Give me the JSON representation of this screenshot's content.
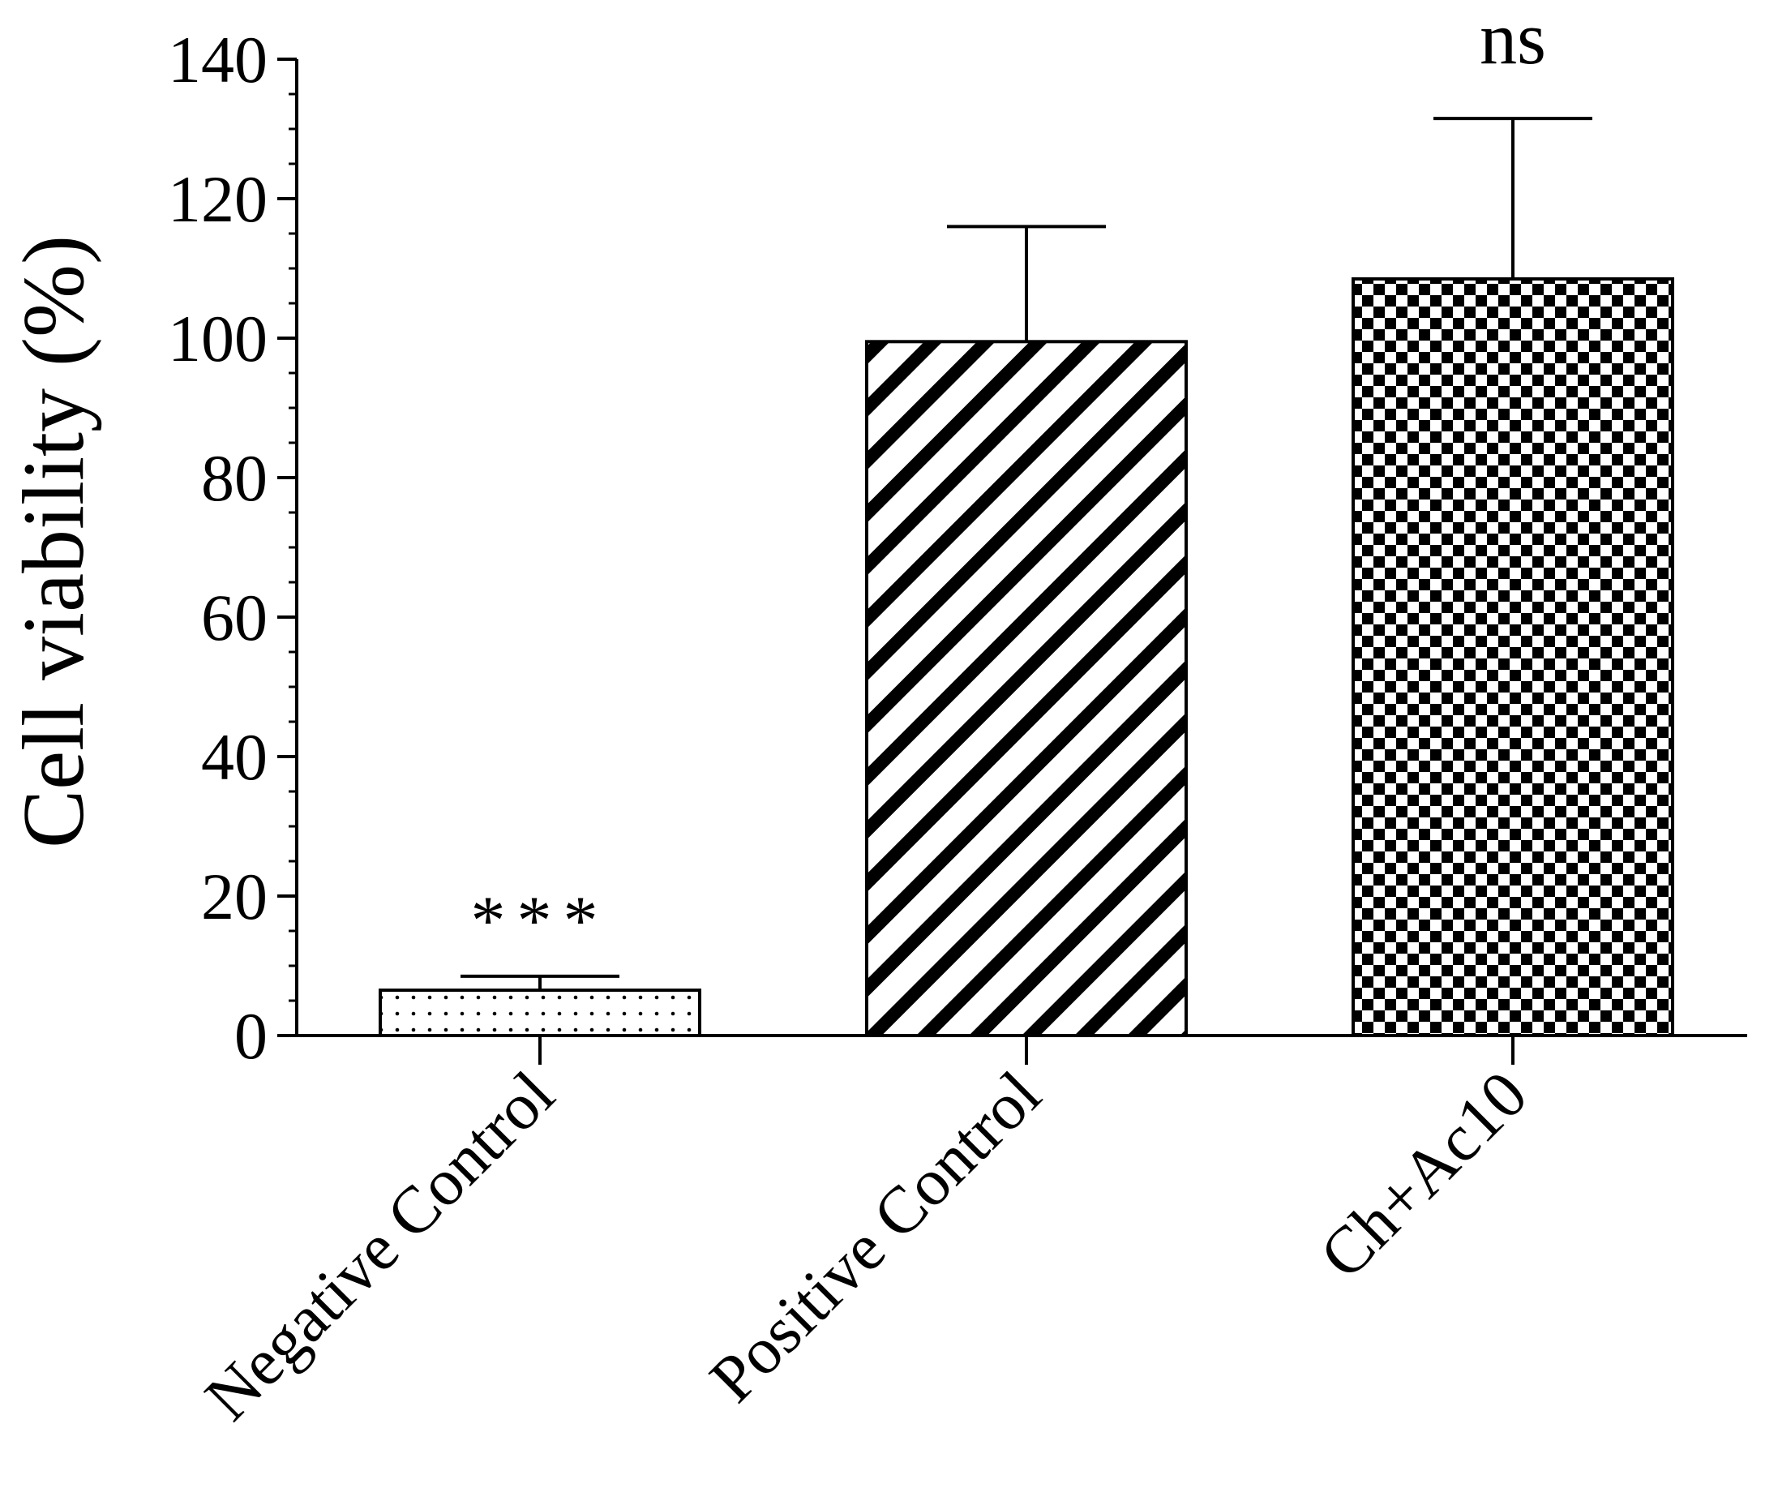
{
  "chart_data": {
    "type": "bar",
    "ylabel": "Cell viability (%)",
    "ylim": [
      0,
      140
    ],
    "yticks": [
      0,
      20,
      40,
      60,
      80,
      100,
      120,
      140
    ],
    "y_minor_step": 5,
    "grid": false,
    "legend": "none",
    "categories": [
      "Negative Control",
      "Positive Control",
      "Ch+Ac10"
    ],
    "values": [
      6.5,
      99.5,
      108.5
    ],
    "error_upper": [
      8.5,
      116,
      131.5
    ],
    "significance": [
      "***",
      "",
      "ns"
    ],
    "patterns": [
      "dots",
      "diagonal-stripes",
      "checkerboard"
    ],
    "colors": {
      "ink": "#000000",
      "background": "#ffffff"
    }
  }
}
